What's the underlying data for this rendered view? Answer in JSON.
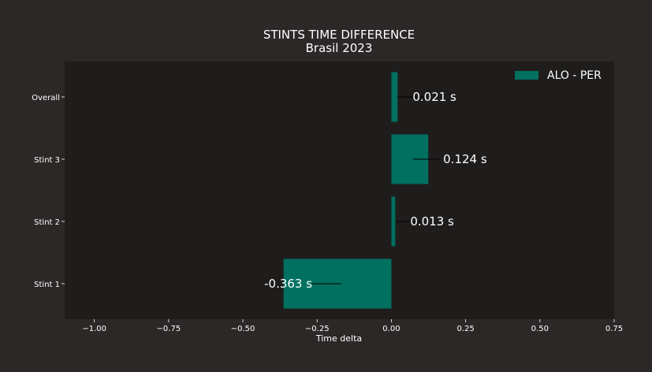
{
  "chart_data": {
    "type": "bar",
    "orientation": "horizontal",
    "title": "STINTS TIME DIFFERENCE",
    "subtitle": "Brasil 2023",
    "xlabel": "Time delta",
    "ylabel": "",
    "categories": [
      "Stint 1",
      "Stint 2",
      "Stint 3",
      "Overall"
    ],
    "series": [
      {
        "name": "ALO - PER",
        "values": [
          -0.363,
          0.013,
          0.124,
          0.021
        ],
        "labels": [
          "-0.363 s",
          "0.013 s",
          "0.124 s",
          "0.021 s"
        ],
        "color": "#007060"
      }
    ],
    "xlim": [
      -1.1,
      0.75
    ],
    "xticks": [
      -1.0,
      -0.75,
      -0.5,
      -0.25,
      0.0,
      0.25,
      0.5,
      0.75
    ],
    "xtick_labels": [
      "−1.00",
      "−0.75",
      "−0.50",
      "−0.25",
      "0.00",
      "0.25",
      "0.50",
      "0.75"
    ],
    "grid": false,
    "legend_position": "top-right",
    "background_color": "#2b2827",
    "plot_background_color": "#1f1d1c"
  }
}
